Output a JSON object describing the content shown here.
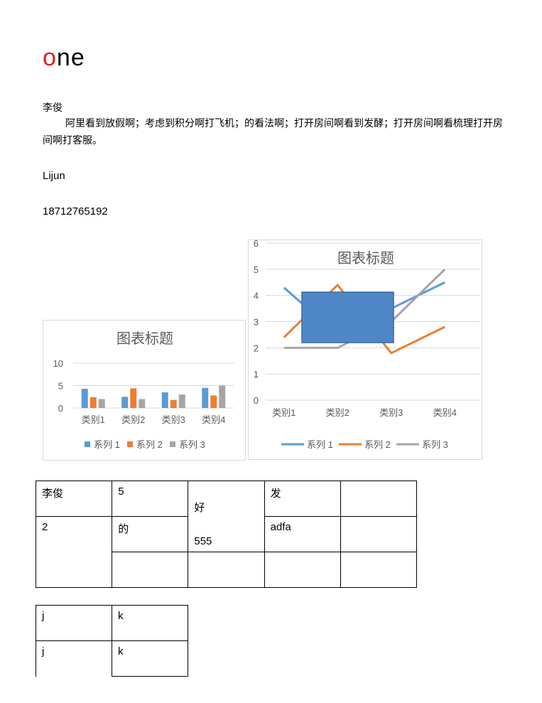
{
  "heading": {
    "first_letter": "o",
    "rest": "ne",
    "accent_color": "#e31b1b"
  },
  "author_cn": "李俊",
  "paragraph": "阿里看到放假啊；考虑到积分啊打飞机；的看法啊；打开房间啊看到发酵；打开房间啊看梳理打开房间啊打客服。",
  "author_en": "Lijun",
  "phone": "18712765192",
  "series_colors": [
    "#5b9bd5",
    "#ed7d31",
    "#a5a5a5"
  ],
  "chart_data": [
    {
      "type": "bar",
      "title": "图表标题",
      "categories": [
        "类别1",
        "类别2",
        "类别3",
        "类别4"
      ],
      "series": [
        {
          "name": "系列 1",
          "values": [
            4.3,
            2.5,
            3.5,
            4.5
          ]
        },
        {
          "name": "系列 2",
          "values": [
            2.4,
            4.4,
            1.8,
            2.8
          ]
        },
        {
          "name": "系列 3",
          "values": [
            2.0,
            2.0,
            3.0,
            5.0
          ]
        }
      ],
      "ylim": [
        0,
        10
      ],
      "yticks": [
        "0",
        "5",
        "10"
      ],
      "grid": true,
      "legend": "bottom"
    },
    {
      "type": "line",
      "title": "图表标题",
      "categories": [
        "类别1",
        "类别2",
        "类别3",
        "类别4"
      ],
      "series": [
        {
          "name": "系列 1",
          "values": [
            4.3,
            2.5,
            3.5,
            4.5
          ]
        },
        {
          "name": "系列 2",
          "values": [
            2.4,
            4.4,
            1.8,
            2.8
          ]
        },
        {
          "name": "系列 3",
          "values": [
            2.0,
            2.0,
            3.0,
            5.0
          ]
        }
      ],
      "ylim": [
        0,
        6
      ],
      "yticks": [
        "0",
        "1",
        "2",
        "3",
        "4",
        "5",
        "6"
      ],
      "grid": true,
      "legend": "bottom",
      "overlay_shape": "blue-rectangle"
    }
  ],
  "table1": {
    "r1": [
      "李俊",
      "5",
      "好",
      "发",
      ""
    ],
    "r2": [
      "2",
      "的",
      "555",
      "adfa",
      ""
    ],
    "r3": [
      "",
      "",
      "",
      ""
    ]
  },
  "table2": {
    "rows": [
      [
        "j",
        "k"
      ],
      [
        "j",
        "k"
      ]
    ]
  }
}
